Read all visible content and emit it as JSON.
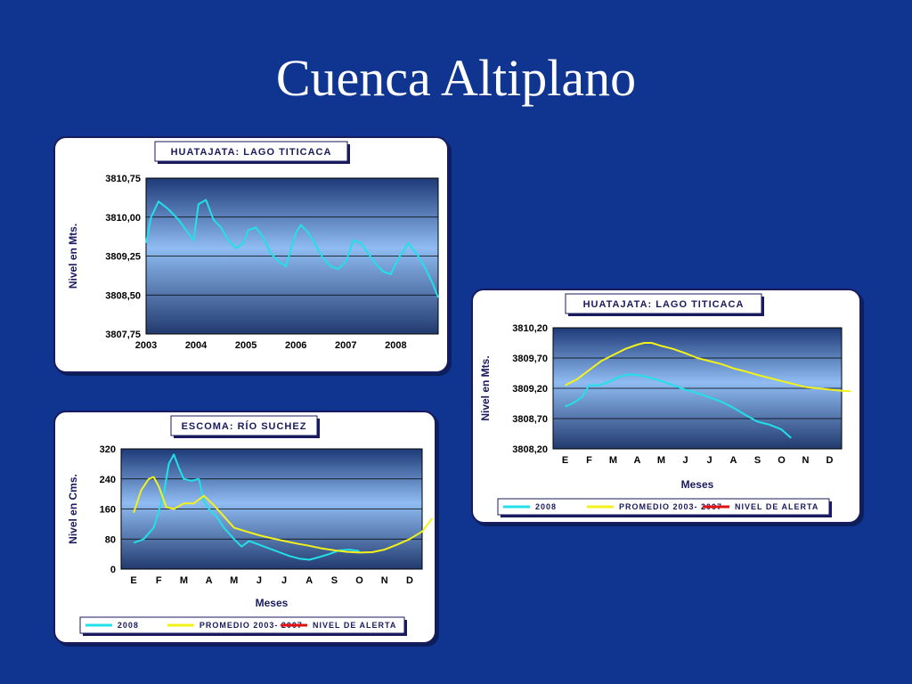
{
  "slide": {
    "title": "Cuenca Altiplano"
  },
  "colors": {
    "background": "#0f3591",
    "series_2008": "#22e0ea",
    "series_promedio": "#f2f21a",
    "series_alerta": "#e01010"
  },
  "chart_data": [
    {
      "type": "line",
      "title": "HUATAJATA: LAGO TITICACA",
      "ylabel": "Nivel en Mts.",
      "xlabel": "",
      "ylim": [
        3807.75,
        3810.75
      ],
      "xlim": [
        2003,
        2008.85
      ],
      "yticks": [
        "3810,75",
        "3810,00",
        "3809,25",
        "3808,50",
        "3807,75"
      ],
      "xticks": [
        "2003",
        "2004",
        "2005",
        "2006",
        "2007",
        "2008"
      ],
      "grid": true,
      "legend": null,
      "series": [
        {
          "name": "",
          "color": "#22e0ea",
          "x": [
            2003.0,
            2003.1,
            2003.25,
            2003.45,
            2003.65,
            2003.8,
            2003.95,
            2004.05,
            2004.2,
            2004.35,
            2004.5,
            2004.65,
            2004.8,
            2004.95,
            2005.05,
            2005.2,
            2005.35,
            2005.5,
            2005.65,
            2005.8,
            2006.0,
            2006.1,
            2006.25,
            2006.4,
            2006.55,
            2006.7,
            2006.85,
            2007.0,
            2007.15,
            2007.3,
            2007.45,
            2007.6,
            2007.75,
            2007.9,
            2008.05,
            2008.25,
            2008.45,
            2008.6,
            2008.75,
            2008.85
          ],
          "y": [
            3809.5,
            3810.0,
            3810.3,
            3810.15,
            3809.95,
            3809.75,
            3809.55,
            3810.25,
            3810.33,
            3809.95,
            3809.8,
            3809.55,
            3809.4,
            3809.5,
            3809.75,
            3809.8,
            3809.6,
            3809.3,
            3809.15,
            3809.05,
            3809.7,
            3809.85,
            3809.7,
            3809.45,
            3809.2,
            3809.05,
            3809.0,
            3809.15,
            3809.55,
            3809.5,
            3809.3,
            3809.1,
            3808.95,
            3808.9,
            3809.2,
            3809.5,
            3809.25,
            3809.0,
            3808.7,
            3808.45
          ]
        }
      ]
    },
    {
      "type": "line",
      "title": "HUATAJATA: LAGO TITICACA",
      "ylabel": "Nivel en Mts.",
      "xlabel": "Meses",
      "ylim": [
        3808.2,
        3810.2
      ],
      "yticks": [
        "3810,20",
        "3809,70",
        "3809,20",
        "3808,70",
        "3808,20"
      ],
      "categories": [
        "E",
        "F",
        "M",
        "A",
        "M",
        "J",
        "J",
        "A",
        "S",
        "O",
        "N",
        "D"
      ],
      "grid": true,
      "legend": "bottom",
      "legend_entries": [
        "2008",
        "PROMEDIO 2003- 2007",
        "NIVEL DE ALERTA"
      ],
      "series": [
        {
          "name": "2008",
          "color": "#22e0ea",
          "x": [
            0,
            0.3,
            0.7,
            1.0,
            1.4,
            1.8,
            2.2,
            2.6,
            3.0,
            3.5,
            4.0,
            4.5,
            5.0,
            5.5,
            6.0,
            6.5,
            7.0,
            7.5,
            8.0,
            8.5,
            9.0,
            9.4
          ],
          "y": [
            3808.9,
            3808.95,
            3809.05,
            3809.25,
            3809.25,
            3809.3,
            3809.38,
            3809.43,
            3809.42,
            3809.38,
            3809.32,
            3809.25,
            3809.18,
            3809.12,
            3809.05,
            3808.98,
            3808.88,
            3808.76,
            3808.65,
            3808.6,
            3808.52,
            3808.38
          ]
        },
        {
          "name": "PROMEDIO 2003- 2007",
          "color": "#f2f21a",
          "x": [
            0,
            0.5,
            1.0,
            1.5,
            2.0,
            2.5,
            3.0,
            3.3,
            3.6,
            4.0,
            4.5,
            5.0,
            5.5,
            6.0,
            6.5,
            7.0,
            7.5,
            8.0,
            8.5,
            9.0,
            9.5,
            10.0,
            10.5,
            11.0,
            11.5,
            11.9
          ],
          "y": [
            3809.25,
            3809.35,
            3809.5,
            3809.65,
            3809.75,
            3809.85,
            3809.92,
            3809.95,
            3809.95,
            3809.9,
            3809.85,
            3809.78,
            3809.7,
            3809.65,
            3809.6,
            3809.53,
            3809.48,
            3809.42,
            3809.37,
            3809.32,
            3809.27,
            3809.22,
            3809.2,
            3809.18,
            3809.16,
            3809.15
          ]
        },
        {
          "name": "NIVEL DE ALERTA",
          "color": "#e01010",
          "x": [],
          "y": []
        }
      ]
    },
    {
      "type": "line",
      "title": "ESCOMA: RÍO SUCHEZ",
      "ylabel": "Nivel en Cms.",
      "xlabel": "Meses",
      "ylim": [
        0,
        320
      ],
      "yticks": [
        "320",
        "240",
        "160",
        "80",
        "0"
      ],
      "categories": [
        "E",
        "F",
        "M",
        "A",
        "M",
        "J",
        "J",
        "A",
        "S",
        "O",
        "N",
        "D"
      ],
      "grid": true,
      "legend": "bottom",
      "legend_entries": [
        "2008",
        "PROMEDIO 2003- 2007",
        "NIVEL DE ALERTA"
      ],
      "series": [
        {
          "name": "2008",
          "color": "#22e0ea",
          "x": [
            0,
            0.4,
            0.8,
            1.2,
            1.4,
            1.6,
            1.8,
            2.0,
            2.3,
            2.6,
            2.8,
            3.0,
            3.3,
            3.6,
            4.0,
            4.3,
            4.6,
            5.0,
            5.4,
            5.8,
            6.2,
            6.6,
            7.0,
            7.4,
            7.8,
            8.2,
            8.6,
            9.0
          ],
          "y": [
            70,
            80,
            110,
            200,
            280,
            305,
            270,
            240,
            235,
            240,
            180,
            160,
            140,
            110,
            80,
            60,
            75,
            65,
            55,
            45,
            35,
            28,
            25,
            32,
            40,
            50,
            52,
            48
          ]
        },
        {
          "name": "PROMEDIO 2003- 2007",
          "color": "#f2f21a",
          "x": [
            0,
            0.3,
            0.6,
            0.8,
            1.0,
            1.3,
            1.6,
            2.0,
            2.4,
            2.8,
            3.2,
            3.6,
            4.0,
            4.5,
            5.0,
            5.5,
            6.0,
            6.5,
            7.0,
            7.5,
            8.0,
            8.5,
            9.0,
            9.5,
            10.0,
            10.5,
            11.0,
            11.5,
            11.9
          ],
          "y": [
            150,
            210,
            240,
            245,
            220,
            165,
            160,
            175,
            175,
            195,
            170,
            140,
            110,
            100,
            90,
            82,
            75,
            68,
            62,
            55,
            50,
            46,
            44,
            45,
            52,
            65,
            80,
            100,
            135
          ]
        },
        {
          "name": "NIVEL DE ALERTA",
          "color": "#e01010",
          "x": [],
          "y": []
        }
      ]
    }
  ]
}
